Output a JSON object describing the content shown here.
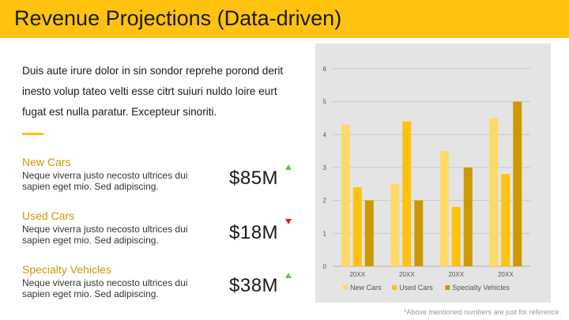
{
  "title": "Revenue Projections (Data-driven)",
  "intro": "Duis aute irure dolor in sin sondor reprehe porond derit inesto volup tateo velti esse citrt suiuri nuldo loire eurt fugat est nulla paratur. Excepteur sinoriti.",
  "metrics": [
    {
      "label": "New Cars",
      "description": "Neque viverra justo necosto ultrices dui sapien eget mio. Sed adipiscing.",
      "value": "$85M",
      "trend": "up"
    },
    {
      "label": "Used Cars",
      "description": "Neque viverra justo necosto ultrices dui sapien eget mio. Sed adipiscing.",
      "value": "$18M",
      "trend": "down"
    },
    {
      "label": "Specialty Vehicles",
      "description": "Neque viverra justo necosto ultrices dui sapien eget mio. Sed adipiscing.",
      "value": "$38M",
      "trend": "up"
    }
  ],
  "colors": {
    "accent": "#ffc20e",
    "label": "#c99a06",
    "trend_up": "#6cc04a",
    "trend_down": "#e8191c"
  },
  "chart_data": {
    "type": "bar",
    "categories": [
      "20XX",
      "20XX",
      "20XX",
      "20XX"
    ],
    "series": [
      {
        "name": "New Cars",
        "values": [
          4.3,
          2.5,
          3.5,
          4.5
        ],
        "color": "#ffd966"
      },
      {
        "name": "Used Cars",
        "values": [
          2.4,
          4.4,
          1.8,
          2.8
        ],
        "color": "#ffc20e"
      },
      {
        "name": "Specialty Vehicles",
        "values": [
          2.0,
          2.0,
          3.0,
          5.0
        ],
        "color": "#cc9900"
      }
    ],
    "ylim": [
      0,
      6
    ],
    "yticks": [
      "0",
      "1",
      "2",
      "3",
      "4",
      "5",
      "6"
    ],
    "grid": true,
    "legend": "bottom"
  },
  "footnote": "*Above mentioned numbers are just for reference."
}
